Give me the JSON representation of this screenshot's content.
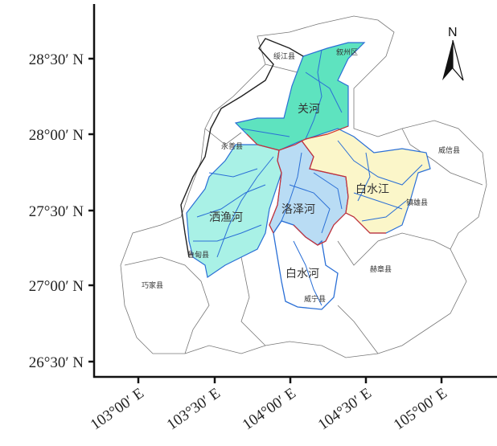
{
  "map": {
    "north_arrow": "N",
    "lat_labels": [
      "28°30′ N",
      "28°00′ N",
      "27°30′ N",
      "27°00′ N",
      "26°30′ N"
    ],
    "lon_labels": [
      "103°00′ E",
      "103°30′ E",
      "104°00′ E",
      "104°30′ E",
      "105°00′ E"
    ],
    "basins": [
      {
        "name": "关河",
        "color": "#5ee3bf"
      },
      {
        "name": "洒渔河",
        "color": "#a9f1e6"
      },
      {
        "name": "洛泽河",
        "color": "#b9dcf4"
      },
      {
        "name": "白水江",
        "color": "#fbf6c9"
      },
      {
        "name": "白水河",
        "color": "#ffffff"
      }
    ],
    "counties": [
      "绥江县",
      "叙州区",
      "永善县",
      "威信县",
      "镇雄县",
      "鲁甸县",
      "巧家县",
      "威宁县",
      "赫章县"
    ],
    "colors": {
      "river": "#2a6fd6",
      "basin_boundary": "#d03030",
      "county_boundary": "#777777",
      "study_area": "#222222"
    }
  }
}
